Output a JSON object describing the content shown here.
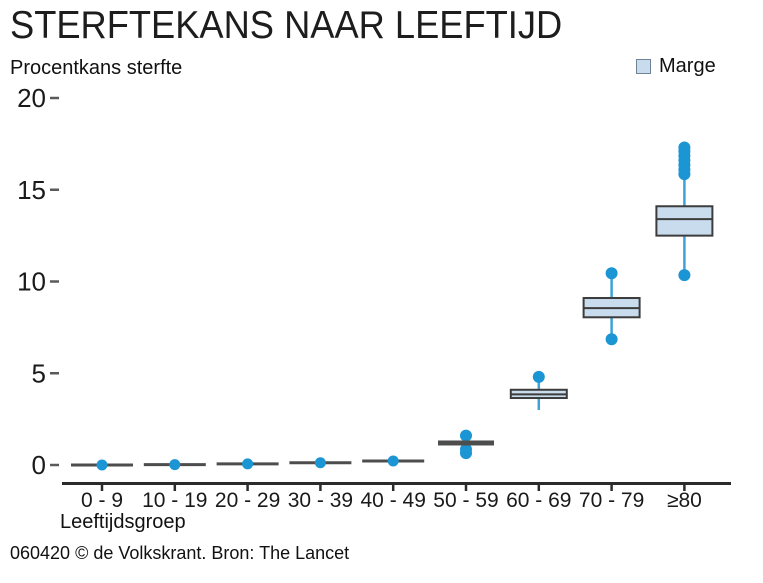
{
  "header": {
    "title": "STERFTEKANS NAAR LEEFTIJD",
    "y_axis_title": "Procentkans sterfte",
    "legend": {
      "label": "Marge",
      "swatch_color": "#c9dcee"
    }
  },
  "footer": {
    "credit": "060420 © de Volkskrant. Bron: The Lancet"
  },
  "chart_data": {
    "type": "boxplot",
    "title": "STERFTEKANS NAAR LEEFTIJD",
    "ylabel": "Procentkans sterfte",
    "xlabel": "Leeftijdsgroep",
    "ylim": [
      0,
      20
    ],
    "yticks": [
      0,
      5,
      10,
      15,
      20
    ],
    "grid": false,
    "legend": [
      {
        "label": "Marge",
        "color": "#c9dcee"
      }
    ],
    "legend_position": "top-right",
    "categories": [
      "0 - 9",
      "10 - 19",
      "20 - 29",
      "30 - 39",
      "40 - 49",
      "50 - 59",
      "60 - 69",
      "70 - 79",
      "≥80"
    ],
    "groups": [
      {
        "label": "0 - 9",
        "style": "flat",
        "median": 0.0,
        "marker": 0.0
      },
      {
        "label": "10 - 19",
        "style": "flat",
        "median": 0.02,
        "marker": 0.02
      },
      {
        "label": "20 - 29",
        "style": "flat",
        "median": 0.06,
        "marker": 0.06
      },
      {
        "label": "30 - 39",
        "style": "flat",
        "median": 0.12,
        "marker": 0.12
      },
      {
        "label": "40 - 49",
        "style": "flat",
        "median": 0.22,
        "marker": 0.22
      },
      {
        "label": "50 - 59",
        "style": "bar",
        "median": 1.2,
        "outliers": [
          1.6
        ],
        "outlier_cluster": [
          0.65,
          0.85
        ]
      },
      {
        "label": "60 - 69",
        "style": "box",
        "q1": 3.65,
        "median": 3.85,
        "q3": 4.1,
        "whisker_low": 3.0,
        "outliers": [
          4.8
        ]
      },
      {
        "label": "70 - 79",
        "style": "box",
        "q1": 8.05,
        "median": 8.55,
        "q3": 9.1,
        "outliers": [
          10.45,
          6.85
        ]
      },
      {
        "label": "≥80",
        "style": "box",
        "q1": 12.5,
        "median": 13.4,
        "q3": 14.1,
        "outliers": [
          10.35
        ],
        "outlier_cluster": [
          15.85,
          16.1,
          16.35,
          16.6,
          16.85,
          17.1,
          17.3
        ]
      }
    ],
    "colors": {
      "box_fill": "#c9dcee",
      "box_border": "#3c3c3c",
      "marker_blue": "#1b95d3",
      "whisker_blue": "#3fa2d7",
      "dark": "#4d4d4d",
      "axis": "#2b2b2b",
      "tick_dash": "#5a5a5a",
      "text": "#1a1a1a"
    }
  }
}
